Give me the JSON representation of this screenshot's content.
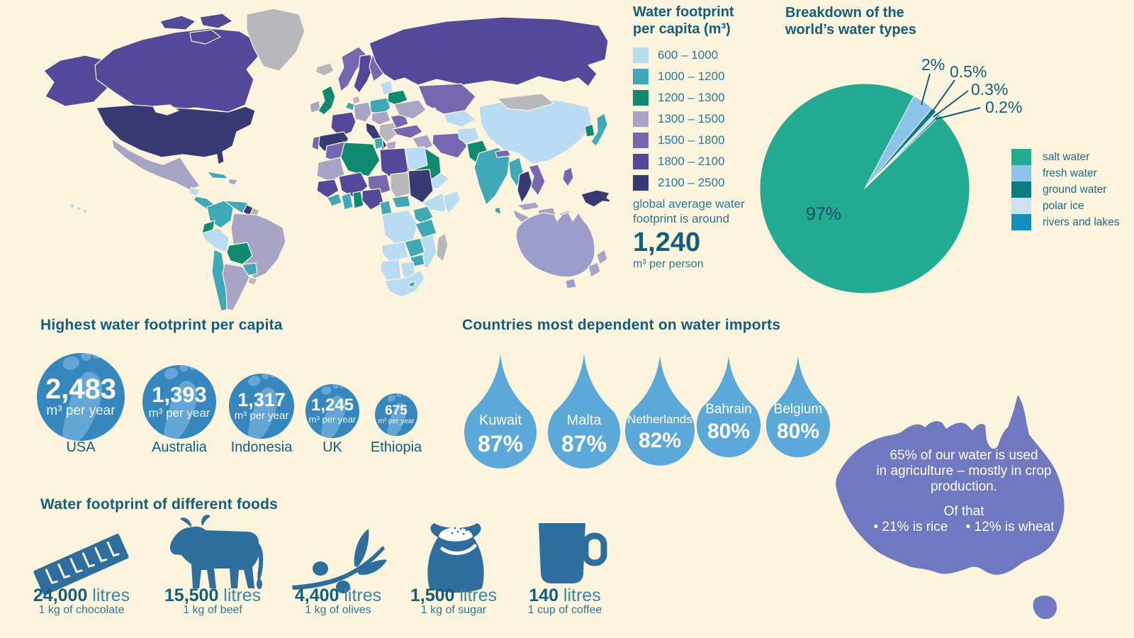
{
  "map_legend": {
    "title_line1": "Water footprint",
    "title_line2": "per capita (m³)",
    "items": [
      {
        "label": "600 – 1000",
        "color": "#b8dcf2"
      },
      {
        "label": "1000 – 1200",
        "color": "#3fa9b8"
      },
      {
        "label": "1200 – 1300",
        "color": "#0f8a70"
      },
      {
        "label": "1300 – 1500",
        "color": "#a7a4c6"
      },
      {
        "label": "1500 – 1800",
        "color": "#7568b0"
      },
      {
        "label": "1800 – 2100",
        "color": "#54489b"
      },
      {
        "label": "2100 – 2500",
        "color": "#383a74"
      }
    ],
    "note_line1": "global average water",
    "note_line2": "footprint is around",
    "value": "1,240",
    "unit": "m³ per person"
  },
  "pie": {
    "title_line1": "Breakdown of the",
    "title_line2": "world’s water types",
    "big_label": "97%",
    "callout_2": "2%",
    "callout_05": "0.5%",
    "callout_03": "0.3%",
    "callout_02": "0.2%",
    "legend": [
      {
        "label": "salt water",
        "color": "#22ab92"
      },
      {
        "label": "fresh water",
        "color": "#8cc4ec"
      },
      {
        "label": "ground water",
        "color": "#0d7b82"
      },
      {
        "label": "polar ice",
        "color": "#cfe0f1"
      },
      {
        "label": "rivers and lakes",
        "color": "#1590bb"
      }
    ]
  },
  "footprints": {
    "title": "Highest water footprint per capita",
    "items": [
      {
        "country": "USA",
        "value": "2,483",
        "unit": "m³ per year"
      },
      {
        "country": "Australia",
        "value": "1,393",
        "unit": "m³ per year"
      },
      {
        "country": "Indonesia",
        "value": "1,317",
        "unit": "m³ per year"
      },
      {
        "country": "UK",
        "value": "1,245",
        "unit": "m³ per year"
      },
      {
        "country": "Ethiopia",
        "value": "675",
        "unit": "m³ per year"
      }
    ]
  },
  "imports": {
    "title": "Countries most dependent on water imports",
    "items": [
      {
        "country": "Kuwait",
        "value": "87%"
      },
      {
        "country": "Malta",
        "value": "87%"
      },
      {
        "country": "Netherlands",
        "value": "82%"
      },
      {
        "country": "Bahrain",
        "value": "80%"
      },
      {
        "country": "Belgium",
        "value": "80%"
      }
    ]
  },
  "australia": {
    "line1": "65% of our water is used",
    "line2": "in agriculture – mostly in crop",
    "line3": "production.",
    "line4": "Of that",
    "bullet1": "• 21% is rice",
    "bullet2": "• 12% is wheat"
  },
  "foods": {
    "title": "Water footprint of different foods",
    "items": [
      {
        "value": "24,000",
        "unit": " litres",
        "label": "1 kg of chocolate"
      },
      {
        "value": "15,500",
        "unit": " litres",
        "label": "1 kg of beef"
      },
      {
        "value": "4,400",
        "unit": " litres",
        "label": "1 kg of olives"
      },
      {
        "value": "1,500",
        "unit": " litres",
        "label": "1 kg of sugar"
      },
      {
        "value": "140",
        "unit": " litres",
        "label": "1 cup of coffee"
      }
    ]
  },
  "chart_data": [
    {
      "type": "heatmap",
      "subtype": "choropleth-world-map",
      "title": "Water footprint per capita (m³)",
      "legend_position": "right",
      "bins": [
        {
          "range": "600 – 1000",
          "color": "#b8dcf2"
        },
        {
          "range": "1000 – 1200",
          "color": "#3fa9b8"
        },
        {
          "range": "1200 – 1300",
          "color": "#0f8a70"
        },
        {
          "range": "1300 – 1500",
          "color": "#a7a4c6"
        },
        {
          "range": "1500 – 1800",
          "color": "#7568b0"
        },
        {
          "range": "1800 – 2100",
          "color": "#54489b"
        },
        {
          "range": "2100 – 2500",
          "color": "#383a74"
        }
      ],
      "annotation": "global average water footprint is around 1,240 m³ per person",
      "example_values": {
        "USA": "2100 – 2500",
        "Canada": "1800 – 2100",
        "Russia": "1800 – 2100",
        "China": "600 – 1000",
        "India": "1000 – 1200",
        "Brazil": "1300 – 1500",
        "Australia": "1300 – 1500",
        "UK": "1200 – 1300",
        "Spain": "2100 – 2500",
        "Saudi Arabia": "1200 – 1300",
        "Greenland": "no data",
        "Mongolia": "no data"
      }
    },
    {
      "type": "pie",
      "title": "Breakdown of the world’s water types",
      "labels": [
        "salt water",
        "fresh water",
        "ground water",
        "polar ice",
        "rivers and lakes"
      ],
      "values": [
        97,
        2,
        0.5,
        0.3,
        0.2
      ],
      "value_labels": [
        "97%",
        "2%",
        "0.5%",
        "0.3%",
        "0.2%"
      ],
      "colors": [
        "#22ab92",
        "#8cc4ec",
        "#0d7b82",
        "#cfe0f1",
        "#1590bb"
      ],
      "legend_position": "right"
    },
    {
      "type": "bar",
      "subtype": "proportional-circles",
      "title": "Highest water footprint per capita",
      "categories": [
        "USA",
        "Australia",
        "Indonesia",
        "UK",
        "Ethiopia"
      ],
      "values": [
        2483,
        1393,
        1317,
        1245,
        675
      ],
      "ylabel": "m³ per year"
    },
    {
      "type": "bar",
      "subtype": "proportional-drops",
      "title": "Countries most dependent on water imports",
      "categories": [
        "Kuwait",
        "Malta",
        "Netherlands",
        "Bahrain",
        "Belgium"
      ],
      "values": [
        87,
        87,
        82,
        80,
        80
      ],
      "ylabel": "%"
    },
    {
      "type": "bar",
      "subtype": "pictogram",
      "title": "Water footprint of different foods",
      "categories": [
        "1 kg of chocolate",
        "1 kg of beef",
        "1 kg of olives",
        "1 kg of sugar",
        "1 cup of coffee"
      ],
      "values": [
        24000,
        15500,
        4400,
        1500,
        140
      ],
      "ylabel": "litres"
    },
    {
      "type": "table",
      "subtype": "annotation",
      "title": "Australia water use",
      "notes": [
        "65% of our water is used in agriculture – mostly in crop production.",
        "Of that • 21% is rice • 12% is wheat"
      ]
    }
  ]
}
